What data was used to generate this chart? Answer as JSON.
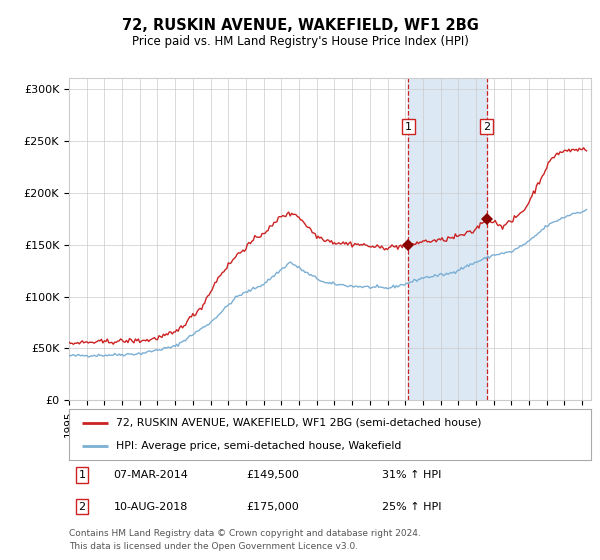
{
  "title": "72, RUSKIN AVENUE, WAKEFIELD, WF1 2BG",
  "subtitle": "Price paid vs. HM Land Registry's House Price Index (HPI)",
  "legend_line1": "72, RUSKIN AVENUE, WAKEFIELD, WF1 2BG (semi-detached house)",
  "legend_line2": "HPI: Average price, semi-detached house, Wakefield",
  "table_rows": [
    {
      "num": "1",
      "date": "07-MAR-2014",
      "price": "£149,500",
      "change": "31% ↑ HPI"
    },
    {
      "num": "2",
      "date": "10-AUG-2018",
      "price": "£175,000",
      "change": "25% ↑ HPI"
    }
  ],
  "footnote1": "Contains HM Land Registry data © Crown copyright and database right 2024.",
  "footnote2": "This data is licensed under the Open Government Licence v3.0.",
  "hpi_color": "#7bafd4",
  "price_color": "#cc2222",
  "marker_color": "#880000",
  "dashed_line_color": "#cc2222",
  "shade_color": "#dce9f5",
  "grid_color": "#cccccc",
  "background_color": "#ffffff",
  "ylim": [
    0,
    310000
  ],
  "yticks": [
    0,
    50000,
    100000,
    150000,
    200000,
    250000,
    300000
  ],
  "ytick_labels": [
    "£0",
    "£50K",
    "£100K",
    "£150K",
    "£200K",
    "£250K",
    "£300K"
  ],
  "sale1_x": 2014.18,
  "sale1_y": 149500,
  "sale2_x": 2018.61,
  "sale2_y": 175000,
  "xmin": 1995.0,
  "xmax": 2024.5,
  "hpi_keypoints": {
    "1995.0": 43000,
    "1997.0": 43500,
    "1999.0": 45000,
    "2001.0": 52000,
    "2003.0": 75000,
    "2004.5": 100000,
    "2006.0": 112000,
    "2007.5": 133000,
    "2008.5": 122000,
    "2009.5": 113000,
    "2011.0": 110000,
    "2013.0": 108000,
    "2014.0": 112000,
    "2015.0": 118000,
    "2016.5": 122000,
    "2018.0": 133000,
    "2019.0": 140000,
    "2020.0": 143000,
    "2021.0": 153000,
    "2022.0": 168000,
    "2022.8": 175000,
    "2023.5": 180000,
    "2024.3": 183000
  },
  "prop_keypoints": {
    "1995.0": 55000,
    "1996.5": 56000,
    "1998.0": 57000,
    "1999.5": 58000,
    "2001.0": 65000,
    "2002.5": 90000,
    "2003.5": 120000,
    "2004.5": 140000,
    "2005.5": 155000,
    "2006.5": 168000,
    "2007.0": 178000,
    "2007.8": 180000,
    "2009.0": 158000,
    "2010.0": 152000,
    "2011.5": 150000,
    "2012.5": 147000,
    "2013.5": 148000,
    "2014.18": 149500,
    "2015.0": 153000,
    "2016.0": 154000,
    "2017.0": 158000,
    "2017.8": 162000,
    "2018.61": 175000,
    "2019.0": 172000,
    "2019.5": 168000,
    "2020.0": 172000,
    "2020.8": 185000,
    "2021.5": 208000,
    "2022.0": 225000,
    "2022.5": 237000,
    "2023.0": 240000,
    "2023.5": 241000,
    "2024.0": 242000,
    "2024.3": 242000
  }
}
